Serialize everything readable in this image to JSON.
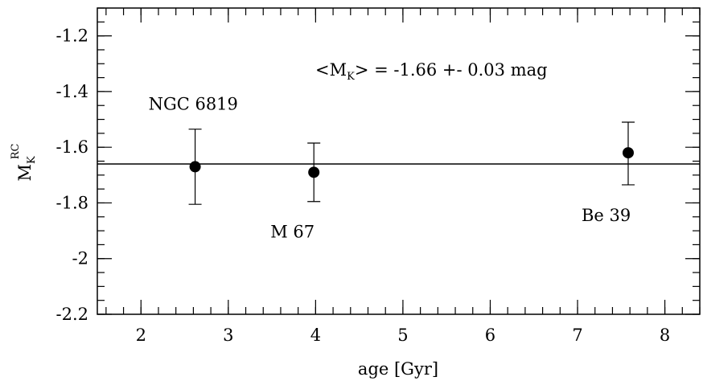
{
  "chart_data": {
    "type": "scatter",
    "xlabel": "age [Gyr]",
    "ylabel": {
      "main": "M",
      "sub": "K",
      "sup": "RC"
    },
    "xlim": [
      1.5,
      8.4
    ],
    "ylim": [
      -2.2,
      -1.1
    ],
    "x_ticks": [
      2,
      3,
      4,
      5,
      6,
      7,
      8
    ],
    "x_tick_labels": [
      "2",
      "3",
      "4",
      "5",
      "6",
      "7",
      "8"
    ],
    "x_minor_step": 0.2,
    "y_ticks": [
      -2.2,
      -2.0,
      -1.8,
      -1.6,
      -1.4,
      -1.2
    ],
    "y_tick_labels": [
      "-2.2",
      "-2",
      "-1.8",
      "-1.6",
      "-1.4",
      "-1.2"
    ],
    "y_minor_step": 0.05,
    "grid": false,
    "points": [
      {
        "label": "NGC 6819",
        "x": 2.62,
        "y": -1.67,
        "err_low": -1.805,
        "err_high": -1.535,
        "label_pos": "above-left"
      },
      {
        "label": "M 67",
        "x": 3.98,
        "y": -1.69,
        "err_low": -1.795,
        "err_high": -1.585,
        "label_pos": "below"
      },
      {
        "label": "Be 39",
        "x": 7.58,
        "y": -1.62,
        "err_low": -1.735,
        "err_high": -1.51,
        "label_pos": "below"
      }
    ],
    "mean_line": {
      "y": -1.66
    },
    "annotation": {
      "prefix": "<M",
      "sub": "K",
      "suffix": "> = -1.66 +- 0.03 mag"
    }
  }
}
